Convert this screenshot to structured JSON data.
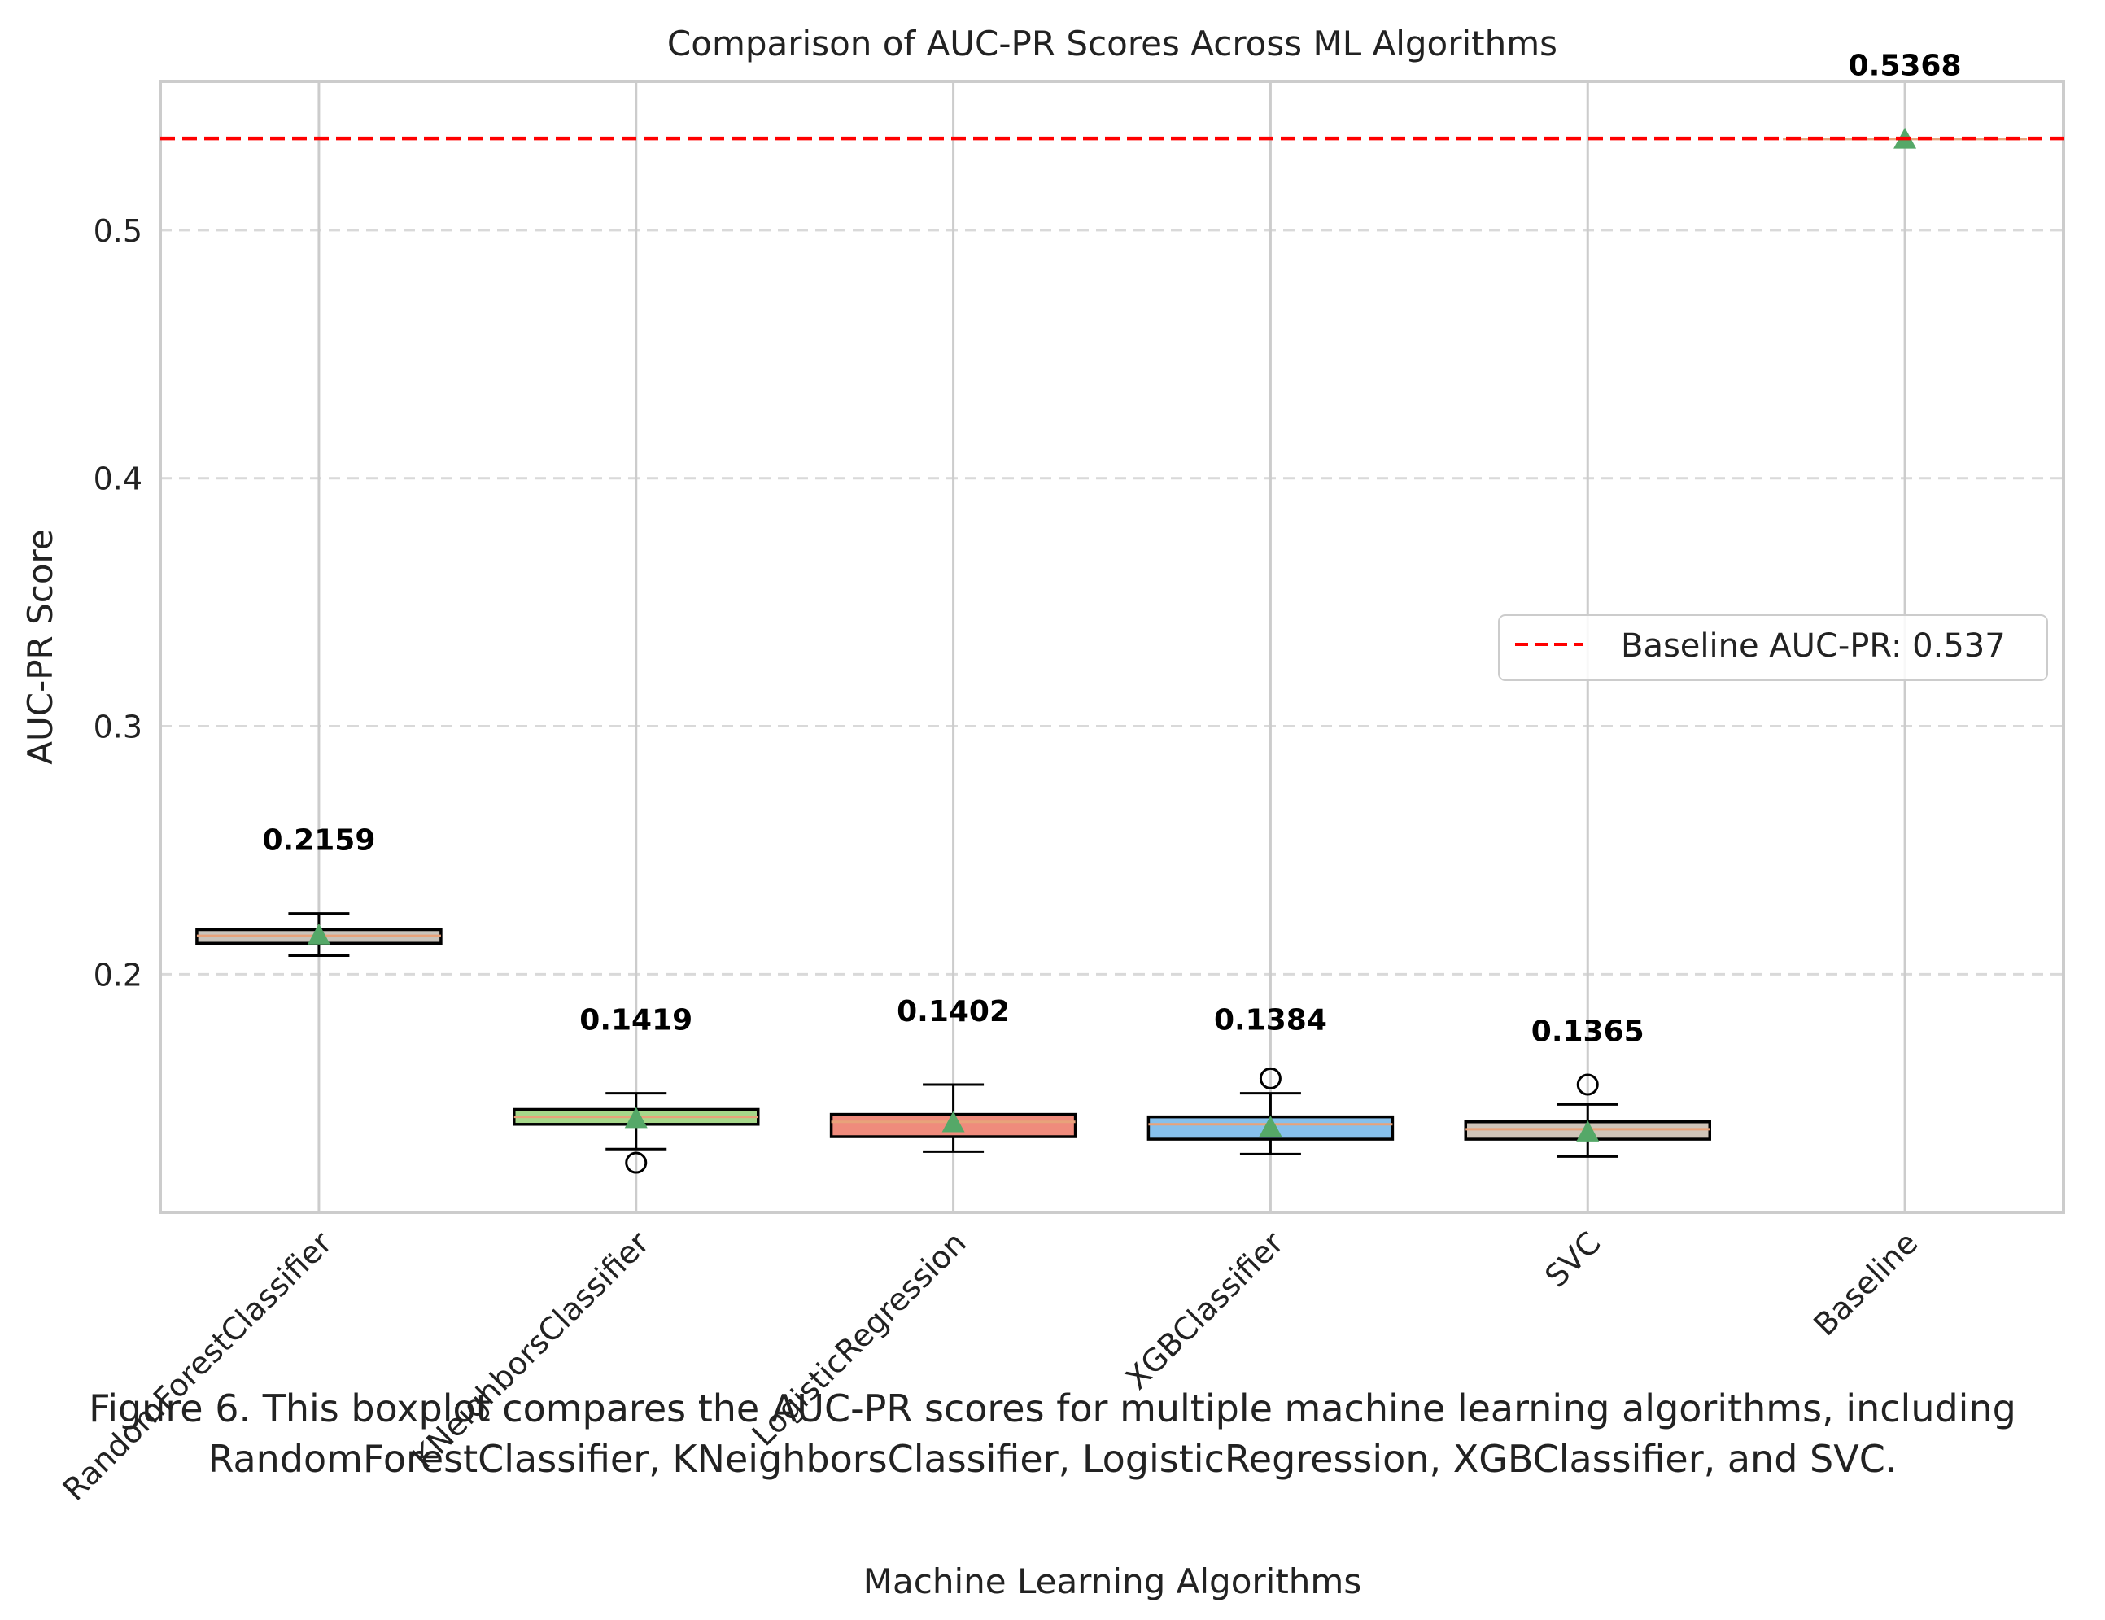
{
  "chart_data": {
    "type": "boxplot",
    "title": "Comparison of AUC-PR Scores Across ML Algorithms",
    "xlabel": "Machine Learning Algorithms",
    "ylabel": "AUC-PR Score",
    "ylim": [
      0.104,
      0.56
    ],
    "yticks": [
      "0.2",
      "0.3",
      "0.4",
      "0.5"
    ],
    "grid": true,
    "categories": [
      "RandomForestClassifier",
      "KNeighborsClassifier",
      "LogisticRegression",
      "XGBClassifier",
      "SVC",
      "Baseline"
    ],
    "boxes": [
      {
        "name": "RandomForestClassifier",
        "whisker_low": 0.2075,
        "q1": 0.2125,
        "median": 0.2155,
        "q3": 0.218,
        "whisker_high": 0.2245,
        "mean": 0.2159,
        "outliers": [],
        "color": "#c9c3bb",
        "label": "0.2159"
      },
      {
        "name": "KNeighborsClassifier",
        "whisker_low": 0.1295,
        "q1": 0.1395,
        "median": 0.1425,
        "q3": 0.1455,
        "whisker_high": 0.152,
        "mean": 0.1419,
        "outliers": [
          0.124
        ],
        "color": "#a6d88a",
        "label": "0.1419"
      },
      {
        "name": "LogisticRegression",
        "whisker_low": 0.1285,
        "q1": 0.1345,
        "median": 0.1405,
        "q3": 0.1435,
        "whisker_high": 0.1555,
        "mean": 0.1402,
        "outliers": [],
        "color": "#ef8b7c",
        "label": "0.1402"
      },
      {
        "name": "XGBClassifier",
        "whisker_low": 0.1275,
        "q1": 0.1335,
        "median": 0.1395,
        "q3": 0.1425,
        "whisker_high": 0.152,
        "mean": 0.1384,
        "outliers": [
          0.158
        ],
        "color": "#86c0ec",
        "label": "0.1384"
      },
      {
        "name": "SVC",
        "whisker_low": 0.1265,
        "q1": 0.1335,
        "median": 0.1375,
        "q3": 0.1405,
        "whisker_high": 0.1475,
        "mean": 0.1365,
        "outliers": [
          0.1555
        ],
        "color": "#cfc4b8",
        "label": "0.1365"
      },
      {
        "name": "Baseline",
        "whisker_low": 0.5368,
        "q1": 0.5368,
        "median": 0.5368,
        "q3": 0.5368,
        "whisker_high": 0.5368,
        "mean": 0.5368,
        "outliers": [],
        "color": "#f4a582",
        "label": "0.5368"
      }
    ],
    "reference_line": {
      "value": 0.537,
      "color": "#ff0000",
      "style": "dashed",
      "legend": "Baseline AUC-PR: 0.537"
    },
    "legend_position": "center-right",
    "mean_marker_color": "#55a868",
    "median_color": "#e8a27a"
  },
  "caption": {
    "line1": "Figure 6. This boxplot compares the AUC-PR scores for multiple machine learning algorithms, including",
    "line2": "RandomForestClassifier, KNeighborsClassifier, LogisticRegression, XGBClassifier, and SVC."
  }
}
